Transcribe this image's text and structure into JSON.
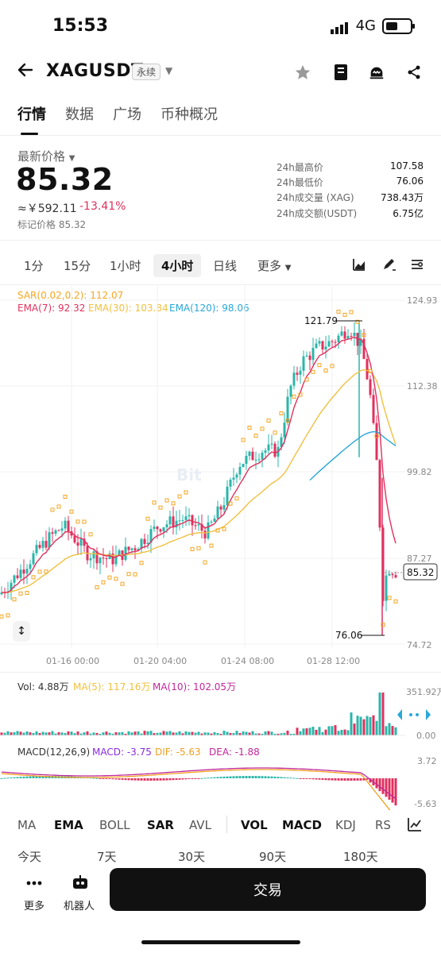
{
  "status": {
    "time": "15:53",
    "network": "4G"
  },
  "header": {
    "symbol": "XAGUSDT",
    "badge": "永续"
  },
  "tabs": [
    "行情",
    "数据",
    "广场",
    "币种概况"
  ],
  "price": {
    "label": "最新价格",
    "value": "85.32",
    "cny": "≈￥592.11",
    "change": "-13.41%",
    "mark": "标记价格 85.32"
  },
  "stats": [
    {
      "label": "24h最高价",
      "value": "107.58"
    },
    {
      "label": "24h最低价",
      "value": "76.06"
    },
    {
      "label": "24h成交量 (XAG)",
      "value": "738.43万"
    },
    {
      "label": "24h成交额(USDT)",
      "value": "6.75亿"
    }
  ],
  "timeframes": [
    "1分",
    "15分",
    "1小时",
    "4小时",
    "日线",
    "更多"
  ],
  "chart": {
    "sar": "SAR(0.02,0.2): 112.07",
    "ema7": "EMA(7): 92.32",
    "ema30": "EMA(30): 103.84",
    "ema120": "EMA(120): 98.06",
    "y_labels": [
      "124.93",
      "112.38",
      "99.82",
      "87.27",
      "74.72"
    ],
    "x_labels": [
      "01-16 00:00",
      "01-20 04:00",
      "01-24 08:00",
      "01-28 12:00"
    ],
    "high_label": "121.79",
    "low_label": "76.06",
    "current": "85.32",
    "watermark": "Bit"
  },
  "volume": {
    "vol": "Vol: 4.88万",
    "ma5": "MA(5): 117.16万",
    "ma10": "MA(10): 102.05万",
    "y_top": "351.92万",
    "y_bottom": "0.00"
  },
  "macd": {
    "title": "MACD(12,26,9)",
    "macd": "MACD: -3.75",
    "dif": "DIF: -5.63",
    "dea": "DEA: -1.88",
    "y_top": "3.72",
    "y_bottom": "-5.63"
  },
  "indicators": [
    "MA",
    "EMA",
    "BOLL",
    "SAR",
    "AVL",
    "VOL",
    "MACD",
    "KDJ",
    "RS"
  ],
  "periods": [
    "今天",
    "7天",
    "30天",
    "90天",
    "180天"
  ],
  "bottom": {
    "more": "更多",
    "robot": "机器人",
    "trade": "交易"
  },
  "colors": {
    "up": "#2bb5a9",
    "down": "#e0315e",
    "sar": "#f5a623",
    "ema7": "#e0315e",
    "ema30": "#f0c040",
    "ema120": "#2aa8d8"
  }
}
